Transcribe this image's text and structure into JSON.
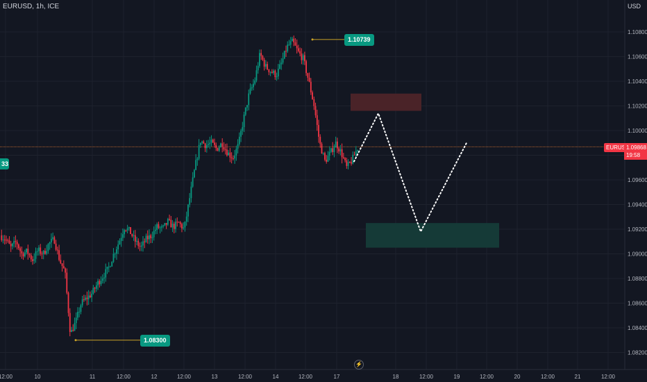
{
  "header": {
    "symbol": "EURUSD, 1h, ICE",
    "currency": "USD"
  },
  "badges": {
    "high_label": "1.10739",
    "low_label": "1.08300",
    "left_edge": "33",
    "symbol_short": "EURUSD",
    "last_price": "1.09868",
    "countdown": "19:58"
  },
  "colors": {
    "up": "#089981",
    "down": "#f23645",
    "background": "#131722",
    "grid": "#1e222d",
    "supply_zone": "#4a2328",
    "demand_zone": "#153a37",
    "price_line": "#b8652d"
  },
  "chart_data": {
    "type": "candlestick",
    "title": "EURUSD, 1h, ICE",
    "y_axis_unit": "USD",
    "y_ticks": [
      1.082,
      1.084,
      1.086,
      1.088,
      1.09,
      1.092,
      1.094,
      1.096,
      1.098,
      1.1,
      1.102,
      1.104,
      1.106,
      1.108
    ],
    "y_tick_labels": [
      "1.08200",
      "1.08400",
      "1.08600",
      "1.08800",
      "1.09000",
      "1.09200",
      "1.09400",
      "1.09600",
      "1.09800",
      "1.10000",
      "1.10200",
      "1.10400",
      "1.10600",
      "1.10800"
    ],
    "x_tick_labels": [
      "12:00",
      "10",
      "11",
      "12:00",
      "12",
      "12:00",
      "13",
      "12:00",
      "14",
      "12:00",
      "17",
      "18",
      "12:00",
      "19",
      "12:00",
      "20",
      "12:00",
      "21",
      "12:00"
    ],
    "current_price": 1.09868,
    "swing_high": 1.10739,
    "swing_low": 1.083,
    "supply_zone": [
      1.1016,
      1.103
    ],
    "demand_zone": [
      1.0905,
      1.0925
    ],
    "projection_path": [
      1.0975,
      1.1014,
      1.0918,
      1.099
    ],
    "close_path": [
      1.0915,
      1.0912,
      1.0905,
      1.091,
      1.09,
      1.0902,
      1.0895,
      1.0903,
      1.09,
      1.0908,
      1.0912,
      1.0895,
      1.0885,
      1.0835,
      1.0845,
      1.086,
      1.0864,
      1.0868,
      1.0876,
      1.0882,
      1.0888,
      1.09,
      1.091,
      1.0922,
      1.0918,
      1.091,
      1.0905,
      1.0912,
      1.0915,
      1.0922,
      1.092,
      1.0926,
      1.0922,
      1.0925,
      1.092,
      1.0945,
      1.097,
      1.0992,
      1.0988,
      1.099,
      1.0985,
      1.099,
      1.0982,
      1.0978,
      1.0988,
      1.101,
      1.103,
      1.104,
      1.1062,
      1.1052,
      1.1048,
      1.1045,
      1.1055,
      1.1068,
      1.1072,
      1.1064,
      1.1058,
      1.104,
      1.102,
      1.099,
      1.0975,
      1.0982,
      1.099,
      1.0982,
      1.097,
      1.0976,
      1.0986
    ]
  }
}
